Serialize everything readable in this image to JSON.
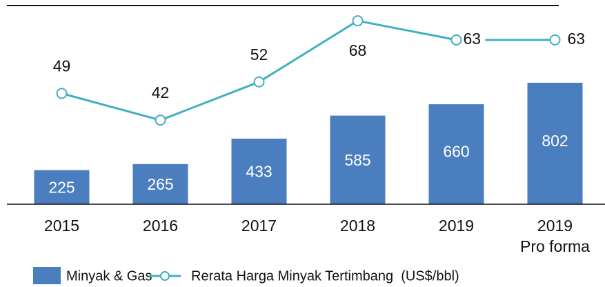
{
  "chart_data": {
    "type": "bar_line",
    "categories": [
      "2015",
      "2016",
      "2017",
      "2018",
      "2019",
      "2019\nPro forma"
    ],
    "series": [
      {
        "name": "Minyak & Gas",
        "type": "bar",
        "color": "#4a7ebf",
        "values": [
          225,
          265,
          433,
          585,
          660,
          802
        ]
      },
      {
        "name": "Rerata Harga Minyak Tertimbang  (US$/bbl)",
        "type": "line",
        "axis": "y2",
        "color": "#3fafc4",
        "values": [
          49,
          42,
          52,
          68,
          63,
          63
        ]
      }
    ],
    "ylim": [
      0,
      1312
    ],
    "y2lim": [
      20,
      72
    ],
    "grid": false
  }
}
